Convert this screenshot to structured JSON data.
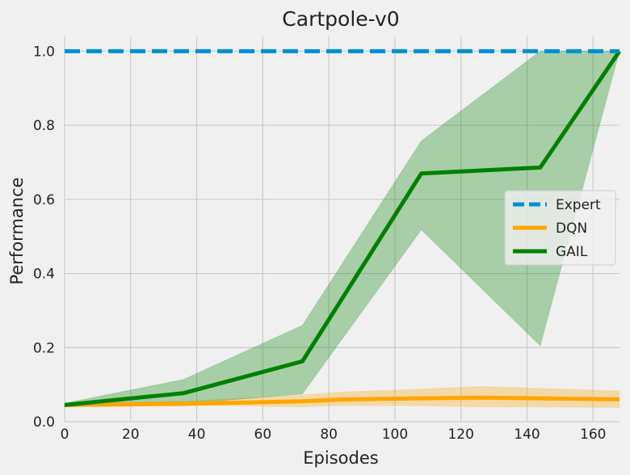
{
  "chart_data": {
    "type": "line",
    "title": "Cartpole-v0",
    "xlabel": "Episodes",
    "ylabel": "Performance",
    "xlim": [
      0,
      168
    ],
    "ylim": [
      0,
      1.04
    ],
    "xticks": [
      0,
      20,
      40,
      60,
      80,
      100,
      120,
      140,
      160
    ],
    "yticks": [
      0.0,
      0.2,
      0.4,
      0.6,
      0.8,
      1.0
    ],
    "ytick_labels": [
      "0.0",
      "0.2",
      "0.4",
      "0.6",
      "0.8",
      "1.0"
    ],
    "grid": true,
    "legend_position": "center-right",
    "series": [
      {
        "name": "Expert",
        "style": "dashed",
        "color": "#008fd5",
        "x": [
          0,
          168
        ],
        "y": [
          1.0,
          1.0
        ]
      },
      {
        "name": "DQN",
        "style": "solid",
        "color": "#ffa500",
        "x": [
          0,
          36,
          72,
          84,
          108,
          126,
          144,
          168
        ],
        "y": [
          0.045,
          0.048,
          0.055,
          0.06,
          0.063,
          0.065,
          0.063,
          0.06
        ],
        "band_lower": [
          0.045,
          0.045,
          0.04,
          0.044,
          0.043,
          0.04,
          0.04,
          0.038
        ],
        "band_upper": [
          0.05,
          0.055,
          0.072,
          0.08,
          0.088,
          0.095,
          0.09,
          0.083
        ],
        "band_color": "#ffa500"
      },
      {
        "name": "GAIL",
        "style": "solid",
        "color": "#008000",
        "x": [
          0,
          36,
          72,
          108,
          144,
          168
        ],
        "y": [
          0.045,
          0.077,
          0.163,
          0.67,
          0.686,
          1.0
        ],
        "band_lower": [
          0.04,
          0.048,
          0.075,
          0.518,
          0.205,
          1.0
        ],
        "band_upper": [
          0.05,
          0.114,
          0.26,
          0.758,
          1.0,
          1.0
        ],
        "band_color": "#008000"
      }
    ]
  }
}
